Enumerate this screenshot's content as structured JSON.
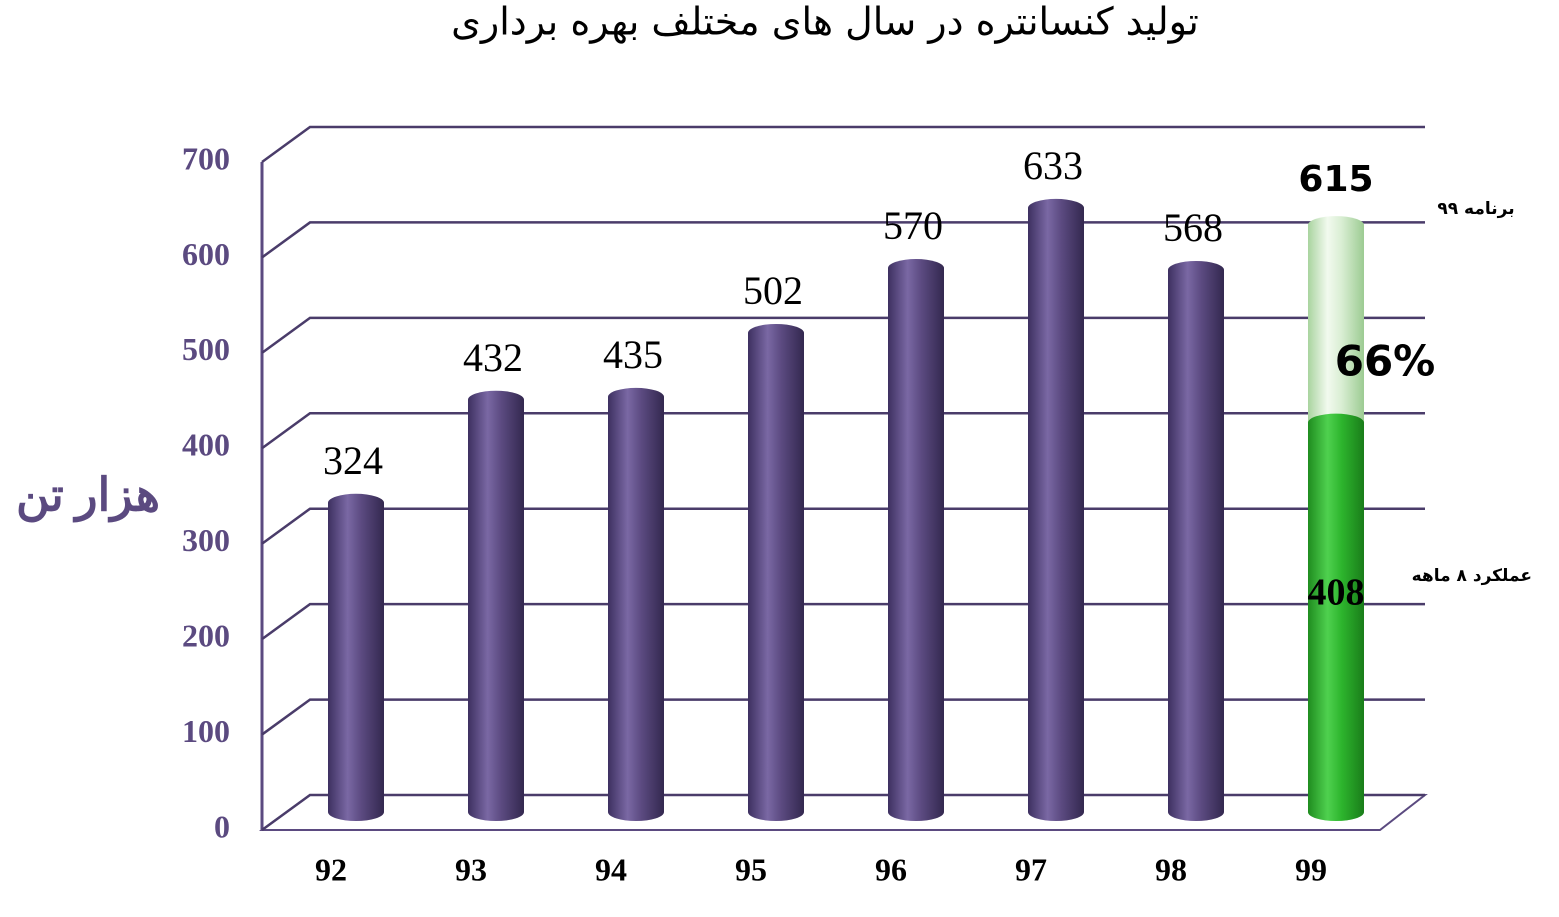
{
  "chart_data": {
    "type": "bar3d",
    "title": "تولید کنسانتره در سال های مختلف بهره برداری",
    "y_label": "هزار تن",
    "categories": [
      "92",
      "93",
      "94",
      "95",
      "96",
      "97",
      "98",
      "99"
    ],
    "values": [
      324,
      432,
      435,
      502,
      570,
      633,
      568,
      408
    ],
    "colors": [
      "#5b4a80",
      "#5b4a80",
      "#5b4a80",
      "#5b4a80",
      "#5b4a80",
      "#5b4a80",
      "#5b4a80",
      "#2db52d"
    ],
    "actual_name": "عملکرد ۸ ماهه",
    "plan": {
      "name": "برنامه ۹۹",
      "value": 615,
      "color": "#cfe9c6"
    },
    "share": {
      "value": 66,
      "label": "66%"
    },
    "ylim": [
      0,
      700
    ],
    "yticks": [
      0,
      100,
      200,
      300,
      400,
      500,
      600,
      700
    ],
    "grid": true
  }
}
